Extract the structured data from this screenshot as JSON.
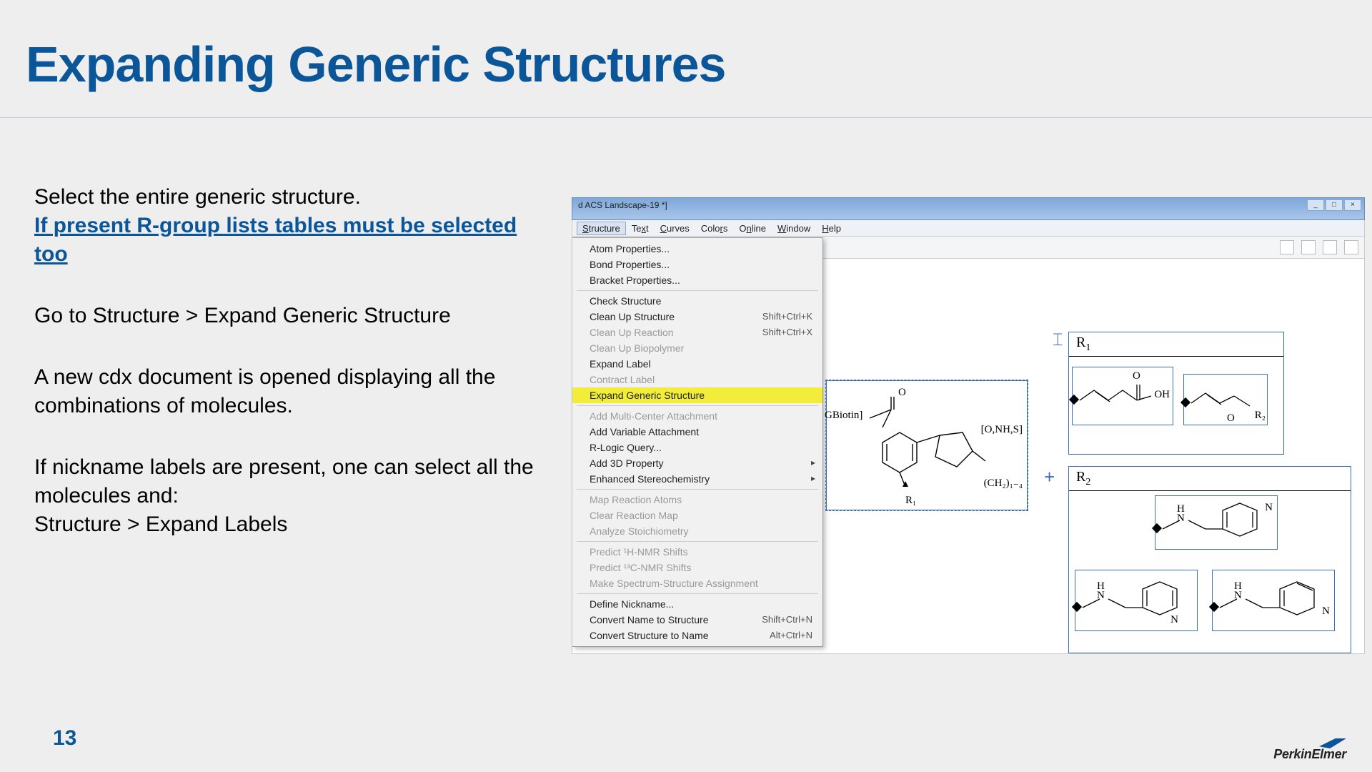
{
  "title": "Expanding Generic Structures",
  "page_number": "13",
  "brand": "PerkinElmer",
  "colors": {
    "brand_blue": "#0a5699",
    "highlight_yellow": "#f2ec3a",
    "slide_bg": "#eeeeee",
    "box_blue": "#3b6fb6"
  },
  "body": {
    "p1a": "Select the entire generic structure.",
    "p1b": "If present R-group lists tables must be selected too",
    "p2": "Go to Structure > Expand Generic Structure",
    "p3": "A new cdx document is opened displaying all the combinations of molecules.",
    "p4a": "If nickname labels are present, one can select all the molecules and:",
    "p4b": "Structure > Expand Labels"
  },
  "screenshot": {
    "window_title": "d ACS Landscape-19 *]",
    "menubar": [
      "Structure",
      "Text",
      "Curves",
      "Colors",
      "Online",
      "Window",
      "Help"
    ],
    "open_menu": "Structure",
    "highlighted_item": "Expand Generic Structure",
    "menu": [
      {
        "label": "Atom Properties...",
        "sep": false
      },
      {
        "label": "Bond Properties...",
        "sep": false
      },
      {
        "label": "Bracket Properties...",
        "sep": true
      },
      {
        "label": "Check Structure",
        "sep": false
      },
      {
        "label": "Clean Up Structure",
        "shortcut": "Shift+Ctrl+K",
        "sep": false
      },
      {
        "label": "Clean Up Reaction",
        "shortcut": "Shift+Ctrl+X",
        "disabled": true,
        "sep": false
      },
      {
        "label": "Clean Up Biopolymer",
        "disabled": true,
        "sep": false
      },
      {
        "label": "Expand Label",
        "sep": false
      },
      {
        "label": "Contract Label",
        "disabled": true,
        "sep": false
      },
      {
        "label": "Expand Generic Structure",
        "highlight": true,
        "sep": true
      },
      {
        "label": "Add Multi-Center Attachment",
        "disabled": true,
        "sep": false
      },
      {
        "label": "Add Variable Attachment",
        "sep": false
      },
      {
        "label": "R-Logic Query...",
        "sep": false
      },
      {
        "label": "Add 3D Property",
        "submenu": true,
        "sep": false
      },
      {
        "label": "Enhanced Stereochemistry",
        "submenu": true,
        "sep": true
      },
      {
        "label": "Map Reaction Atoms",
        "disabled": true,
        "sep": false
      },
      {
        "label": "Clear Reaction Map",
        "disabled": true,
        "sep": false
      },
      {
        "label": "Analyze Stoichiometry",
        "disabled": true,
        "sep": true
      },
      {
        "label": "Predict ¹H-NMR Shifts",
        "disabled": true,
        "sep": false
      },
      {
        "label": "Predict ¹³C-NMR Shifts",
        "disabled": true,
        "sep": false
      },
      {
        "label": "Make Spectrum-Structure Assignment",
        "disabled": true,
        "sep": true
      },
      {
        "label": "Define Nickname...",
        "sep": false
      },
      {
        "label": "Convert Name to Structure",
        "shortcut": "Shift+Ctrl+N",
        "sep": false
      },
      {
        "label": "Convert Structure to Name",
        "shortcut": "Alt+Ctrl+N",
        "sep": false
      }
    ],
    "main_structure": {
      "nickname": "GBiotin]",
      "atom_list": "[O,NH,S]",
      "chain_label": "(CH₂)₁₋₄",
      "r_label": "R₁"
    },
    "r1_table": {
      "header": "R₁",
      "frag1_label": "OH",
      "frag1_atom": "O",
      "frag2_atom1": "O",
      "frag2_atom2": "R₂"
    },
    "r2_table": {
      "header": "R₂",
      "nh": "H\nN",
      "n": "N"
    }
  }
}
